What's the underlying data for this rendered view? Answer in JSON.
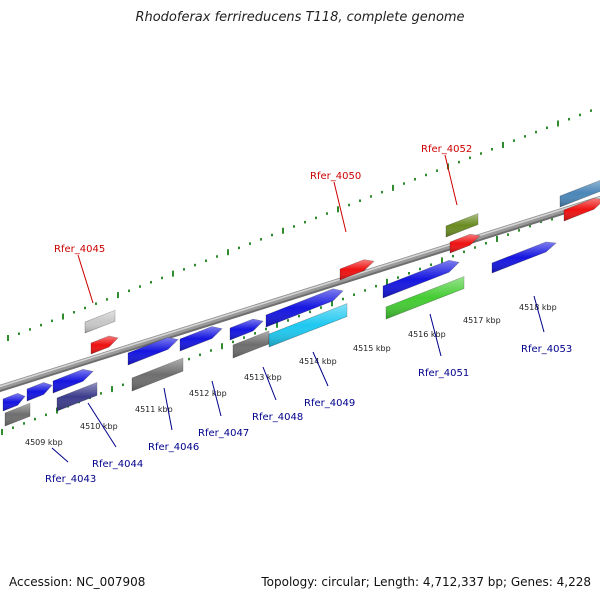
{
  "title": "Rhodoferax ferrireducens T118, complete genome",
  "footer": {
    "accession": "Accession: NC_007908",
    "info": "Topology: circular; Length: 4,712,337 bp; Genes: 4,228"
  },
  "colors": {
    "background": "#ffffff",
    "backbone": "#999999",
    "tick_marks": "#2e8b2e",
    "highlight_label": "#cc0000",
    "gene_label": "#00008b",
    "forward_gene": "#1515e0",
    "gene_red": "#ee1111",
    "gene_grey": "#6e6e6e",
    "gene_light_grey": "#c8c8c8",
    "gene_navy": "#3c3c8c",
    "gene_cyan": "#1ec8f0",
    "gene_green": "#44cc33",
    "gene_olive": "#6a8c22",
    "gene_steel": "#4a86b8"
  },
  "scale_labels": [
    "4509 kbp",
    "4510 kbp",
    "4511 kbp",
    "4512 kbp",
    "4513 kbp",
    "4514 kbp",
    "4515 kbp",
    "4516 kbp",
    "4517 kbp",
    "4518 kbp"
  ],
  "highlighted_genes": [
    {
      "label": "Rfer_4045"
    },
    {
      "label": "Rfer_4050"
    },
    {
      "label": "Rfer_4052"
    }
  ],
  "gene_labels": [
    {
      "label": "Rfer_4043"
    },
    {
      "label": "Rfer_4044"
    },
    {
      "label": "Rfer_4046"
    },
    {
      "label": "Rfer_4047"
    },
    {
      "label": "Rfer_4048"
    },
    {
      "label": "Rfer_4049"
    },
    {
      "label": "Rfer_4051"
    },
    {
      "label": "Rfer_4053"
    }
  ]
}
